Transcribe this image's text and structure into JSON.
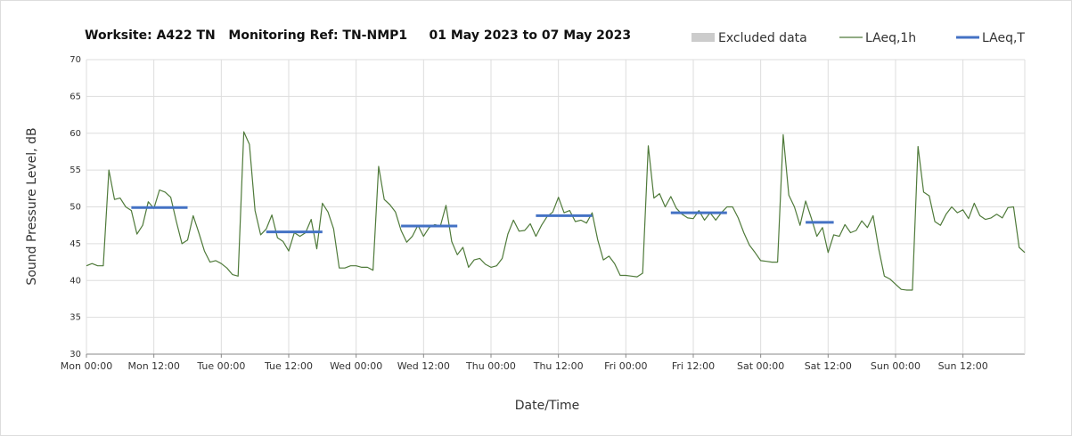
{
  "chart_data": {
    "type": "line",
    "title": "Worksite: A422 TN   Monitoring Ref: TN-NMP1     01 May 2023 to 07 May 2023",
    "x_label": "Date/Time",
    "y_label": "Sound Pressure Level, dB",
    "legend_extra": {
      "name": "Excluded data",
      "color": "#cccccc"
    },
    "xlim": [
      0,
      167
    ],
    "ylim": [
      30,
      70
    ],
    "yticks": [
      30,
      35,
      40,
      45,
      50,
      55,
      60,
      65,
      70
    ],
    "xticks": [
      {
        "value": 0,
        "label": "Mon 00:00"
      },
      {
        "value": 12,
        "label": "Mon 12:00"
      },
      {
        "value": 24,
        "label": "Tue 00:00"
      },
      {
        "value": 36,
        "label": "Tue 12:00"
      },
      {
        "value": 48,
        "label": "Wed 00:00"
      },
      {
        "value": 60,
        "label": "Wed 12:00"
      },
      {
        "value": 72,
        "label": "Thu 00:00"
      },
      {
        "value": 84,
        "label": "Thu 12:00"
      },
      {
        "value": 96,
        "label": "Fri 00:00"
      },
      {
        "value": 108,
        "label": "Fri 12:00"
      },
      {
        "value": 120,
        "label": "Sat 00:00"
      },
      {
        "value": 132,
        "label": "Sat 12:00"
      },
      {
        "value": 144,
        "label": "Sun 00:00"
      },
      {
        "value": 156,
        "label": "Sun 12:00"
      }
    ],
    "grid": true,
    "series": [
      {
        "name": "LAeq,1h",
        "color": "#4f7a3a",
        "width": 1.2,
        "values": [
          42,
          42.3,
          42,
          42,
          55,
          51,
          51.2,
          50,
          49.5,
          46.3,
          47.5,
          50.7,
          49.8,
          52.3,
          52,
          51.3,
          48,
          45,
          45.5,
          48.8,
          46.5,
          44,
          42.5,
          42.7,
          42.3,
          41.7,
          40.8,
          40.6,
          60.2,
          58.5,
          49.5,
          46.2,
          47,
          48.9,
          45.8,
          45.3,
          44,
          46.5,
          46,
          46.5,
          48.3,
          44.3,
          50.5,
          49.3,
          47,
          41.7,
          41.7,
          42,
          42,
          41.8,
          41.8,
          41.4,
          55.5,
          51,
          50.3,
          49.3,
          46.8,
          45.2,
          46,
          47.5,
          46,
          47.2,
          47.6,
          47.4,
          50.2,
          45.3,
          43.5,
          44.5,
          41.8,
          42.8,
          43,
          42.2,
          41.8,
          42,
          43,
          46.3,
          48.2,
          46.7,
          46.8,
          47.7,
          46,
          47.5,
          48.7,
          49.3,
          51.3,
          49.2,
          49.5,
          48,
          48.2,
          47.8,
          49.2,
          45.5,
          42.8,
          43.3,
          42.3,
          40.7,
          40.7,
          40.6,
          40.5,
          41,
          58.3,
          51.2,
          51.8,
          50,
          51.4,
          49.8,
          49,
          48.5,
          48.4,
          49.5,
          48.2,
          49.2,
          48.2,
          49.2,
          50,
          50,
          48.5,
          46.5,
          44.8,
          43.8,
          42.7,
          42.6,
          42.5,
          42.5,
          59.8,
          51.6,
          50,
          47.5,
          50.8,
          48.5,
          46,
          47.2,
          43.8,
          46.2,
          46,
          47.6,
          46.5,
          46.8,
          48.1,
          47.2,
          48.8,
          44.3,
          40.6,
          40.2,
          39.5,
          38.8,
          38.7,
          38.7,
          58.2,
          52,
          51.5,
          48,
          47.5,
          49,
          50,
          49.2,
          49.6,
          48.4,
          50.5,
          48.8,
          48.3,
          48.5,
          49,
          48.5,
          49.9,
          50,
          44.5,
          43.8
        ]
      },
      {
        "name": "LAeq,T",
        "color": "#4472c4",
        "width": 3,
        "x": [
          8,
          18,
          25,
          32,
          42,
          49,
          56,
          66,
          73,
          80,
          90,
          97,
          104,
          114,
          121,
          128,
          133
        ],
        "values": [
          49.9,
          49.9,
          null,
          46.6,
          46.6,
          null,
          47.4,
          47.4,
          null,
          48.8,
          48.8,
          null,
          49.2,
          49.2,
          null,
          47.9,
          47.9
        ]
      }
    ]
  }
}
